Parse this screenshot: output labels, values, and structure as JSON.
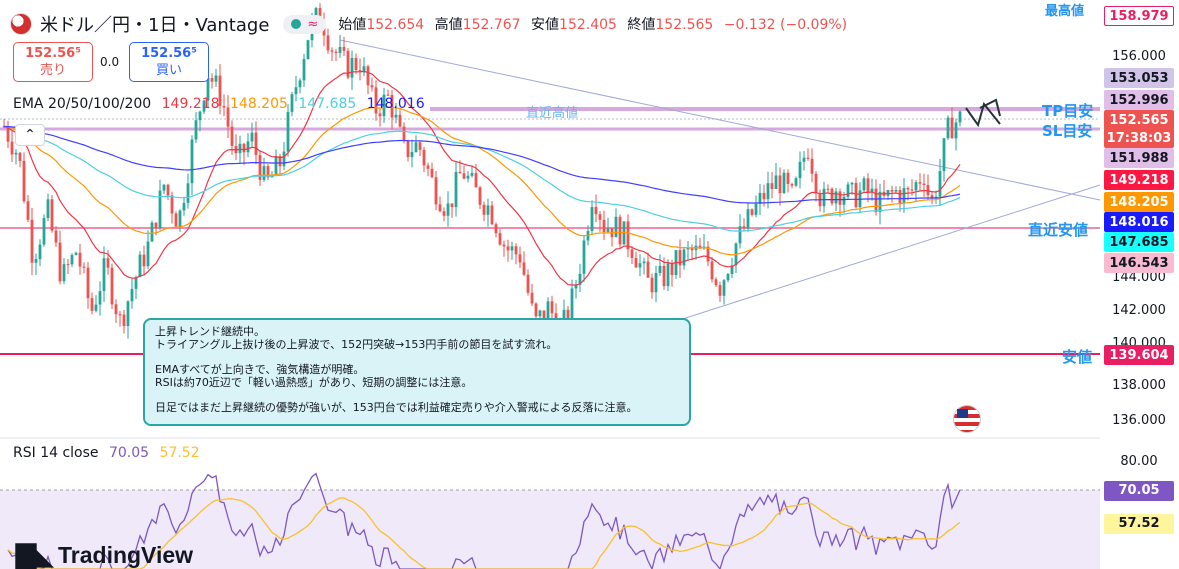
{
  "header": {
    "symbol": "米ドル／円・1日・Vantage",
    "pill_icon": "wave-icon",
    "ohlc": {
      "open_label": "始値",
      "open": "152.654",
      "high_label": "高値",
      "high": "152.767",
      "low_label": "安値",
      "low": "152.405",
      "close_label": "終値",
      "close": "152.565",
      "change": "−0.132 (−0.09%)"
    }
  },
  "trade": {
    "sell_price": "152.56⁵",
    "sell_label": "売り",
    "spread": "0.0",
    "buy_price": "152.56⁵",
    "buy_label": "買い"
  },
  "ema_legend": {
    "label": "EMA 20/50/100/200",
    "v20": "149.218",
    "v50": "148.205",
    "v100": "147.685",
    "v200": "148.016"
  },
  "annotation": {
    "line1": "上昇トレンド継続中。",
    "line2": "トライアングル上抜け後の上昇波で、152円突破→153円手前の節目を試す流れ。",
    "line3": "EMAすべてが上向きで、強気構造が明確。",
    "line4": "RSIは約70近辺で「軽い過熱感」があり、短期の調整には注意。",
    "line5": "日足ではまだ上昇継続の優勢が強いが、153円台では利益確定売りや介入警戒による反落に注意。"
  },
  "line_labels": {
    "recent_high": "直近高値",
    "tp": "TP目安",
    "sl": "SL目安",
    "recent_low": "直近安値",
    "low": "安値",
    "highest": "最高値"
  },
  "price_axis": {
    "ticks": [
      "156.000",
      "144.000",
      "142.000",
      "140.000",
      "138.000",
      "136.000"
    ],
    "tags": [
      {
        "value": "158.979",
        "bg": "#ffffff",
        "fg": "#e91e63",
        "border": "#e91e63"
      },
      {
        "value": "153.053",
        "bg": "#d1c4e9",
        "fg": "#131722",
        "border": "#d1c4e9"
      },
      {
        "value": "152.996",
        "bg": "#e1bee7",
        "fg": "#131722",
        "border": "#e1bee7"
      },
      {
        "value": "152.565",
        "bg": "#ef5350",
        "fg": "#ffffff",
        "border": "#ef5350"
      },
      {
        "value": "17:38:03",
        "bg": "#ef5350",
        "fg": "#ffffff",
        "border": "#ef5350"
      },
      {
        "value": "151.988",
        "bg": "#e1bee7",
        "fg": "#131722",
        "border": "#e1bee7"
      },
      {
        "value": "149.218",
        "bg": "#ff1744",
        "fg": "#ffffff",
        "border": "#ff1744"
      },
      {
        "value": "148.205",
        "bg": "#ff9800",
        "fg": "#ffffff",
        "border": "#ff9800"
      },
      {
        "value": "148.016",
        "bg": "#1a1aff",
        "fg": "#ffffff",
        "border": "#1a1aff"
      },
      {
        "value": "147.685",
        "bg": "#18ffff",
        "fg": "#131722",
        "border": "#18ffff"
      },
      {
        "value": "146.543",
        "bg": "#f8bbd0",
        "fg": "#131722",
        "border": "#f8bbd0"
      },
      {
        "value": "139.604",
        "bg": "#e91e63",
        "fg": "#ffffff",
        "border": "#e91e63"
      }
    ]
  },
  "rsi": {
    "label": "RSI 14 close",
    "value": "70.05",
    "ma_value": "57.52",
    "tick_top": "80.00",
    "tag_value": "70.05",
    "tag_ma": "57.52"
  },
  "colors": {
    "up": "#26a69a",
    "down": "#ef5350",
    "ema20": "#f23645",
    "ema50": "#ff9800",
    "ema100": "#4dd0e1",
    "ema200": "#3f3fff",
    "rsi": "#7e57c2",
    "rsi_ma": "#fbc02d"
  },
  "brand": "TradingView",
  "chart_data": {
    "type": "candlestick",
    "title": "米ドル／円・1日・Vantage",
    "ylim": [
      135.5,
      159.5
    ],
    "y_ticks": [
      136,
      138,
      140,
      142,
      144,
      156
    ],
    "levels": [
      {
        "name": "最高値",
        "value": 158.979
      },
      {
        "name": "TP目安",
        "value": 153.053
      },
      {
        "name": "直近高値",
        "value": 152.996
      },
      {
        "name": "SL目安",
        "value": 151.988
      },
      {
        "name": "直近安値",
        "value": 146.543
      },
      {
        "name": "安値",
        "value": 139.604
      }
    ],
    "close_path": [
      [
        0,
        152.2
      ],
      [
        8,
        150.6
      ],
      [
        16,
        145.0
      ],
      [
        24,
        147.5
      ],
      [
        32,
        143.8
      ],
      [
        40,
        145.4
      ],
      [
        48,
        142.0
      ],
      [
        56,
        144.5
      ],
      [
        64,
        141.4
      ],
      [
        72,
        143.8
      ],
      [
        80,
        145.8
      ],
      [
        88,
        149.0
      ],
      [
        96,
        146.9
      ],
      [
        104,
        151.4
      ],
      [
        112,
        155.2
      ],
      [
        120,
        153.7
      ],
      [
        128,
        150.1
      ],
      [
        136,
        151.6
      ],
      [
        144,
        148.9
      ],
      [
        152,
        150.2
      ],
      [
        160,
        154.2
      ],
      [
        168,
        157.5
      ],
      [
        174,
        158.4
      ],
      [
        180,
        156.6
      ],
      [
        188,
        155.5
      ],
      [
        196,
        155.7
      ],
      [
        204,
        153.1
      ],
      [
        212,
        153.8
      ],
      [
        220,
        150.8
      ],
      [
        228,
        151.2
      ],
      [
        236,
        149.0
      ],
      [
        244,
        147.6
      ],
      [
        252,
        149.8
      ],
      [
        260,
        148.5
      ],
      [
        268,
        147.6
      ],
      [
        276,
        145.5
      ],
      [
        284,
        145.1
      ],
      [
        292,
        141.3
      ],
      [
        300,
        142.3
      ],
      [
        306,
        140.8
      ],
      [
        312,
        142.4
      ],
      [
        318,
        145.1
      ],
      [
        324,
        148.7
      ],
      [
        330,
        146.8
      ],
      [
        338,
        146.6
      ],
      [
        346,
        145.5
      ],
      [
        354,
        143.6
      ],
      [
        362,
        143.8
      ],
      [
        370,
        144.7
      ],
      [
        378,
        145.3
      ],
      [
        386,
        145.1
      ],
      [
        394,
        143.4
      ],
      [
        402,
        145.6
      ],
      [
        410,
        147.1
      ],
      [
        418,
        148.4
      ],
      [
        426,
        149.3
      ],
      [
        434,
        148.2
      ],
      [
        442,
        151.2
      ],
      [
        450,
        148.0
      ],
      [
        458,
        148.8
      ],
      [
        466,
        148.3
      ],
      [
        474,
        148.7
      ],
      [
        482,
        147.9
      ],
      [
        490,
        148.6
      ],
      [
        498,
        148.4
      ],
      [
        506,
        149.7
      ],
      [
        510,
        147.8
      ],
      [
        514,
        149.3
      ],
      [
        520,
        152.2
      ],
      [
        526,
        152.6
      ]
    ],
    "ema": [
      {
        "name": "EMA 20",
        "last": 149.218
      },
      {
        "name": "EMA 50",
        "last": 148.205
      },
      {
        "name": "EMA 100",
        "last": 147.685
      },
      {
        "name": "EMA 200",
        "last": 148.016
      }
    ],
    "rsi_last": 70.05,
    "rsi_ma_last": 57.52
  }
}
